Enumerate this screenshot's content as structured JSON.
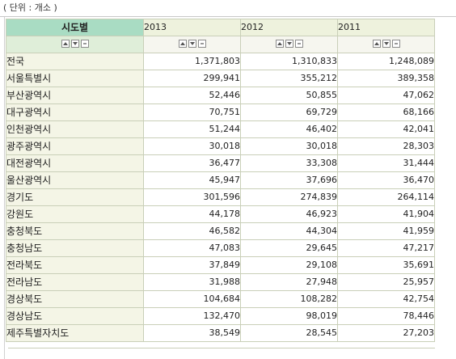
{
  "unit_label": "( 단위 : 개소 )",
  "table": {
    "region_header": "시도별",
    "years": [
      "2013",
      "2012",
      "2011"
    ],
    "rows": [
      {
        "region": "전국",
        "values": [
          "1,371,803",
          "1,310,833",
          "1,248,089"
        ]
      },
      {
        "region": "서울특별시",
        "values": [
          "299,941",
          "355,212",
          "389,358"
        ]
      },
      {
        "region": "부산광역시",
        "values": [
          "52,446",
          "50,855",
          "47,062"
        ]
      },
      {
        "region": "대구광역시",
        "values": [
          "70,751",
          "69,729",
          "68,166"
        ]
      },
      {
        "region": "인천광역시",
        "values": [
          "51,244",
          "46,402",
          "42,041"
        ]
      },
      {
        "region": "광주광역시",
        "values": [
          "30,018",
          "30,018",
          "28,303"
        ]
      },
      {
        "region": "대전광역시",
        "values": [
          "36,477",
          "33,308",
          "31,444"
        ]
      },
      {
        "region": "울산광역시",
        "values": [
          "45,947",
          "37,696",
          "36,470"
        ]
      },
      {
        "region": "경기도",
        "values": [
          "301,596",
          "274,839",
          "264,114"
        ]
      },
      {
        "region": "강원도",
        "values": [
          "44,178",
          "46,923",
          "41,904"
        ]
      },
      {
        "region": "충청북도",
        "values": [
          "46,582",
          "44,304",
          "41,959"
        ]
      },
      {
        "region": "충청남도",
        "values": [
          "47,083",
          "29,645",
          "47,217"
        ]
      },
      {
        "region": "전라북도",
        "values": [
          "37,849",
          "29,108",
          "35,691"
        ]
      },
      {
        "region": "전라남도",
        "values": [
          "31,988",
          "27,948",
          "25,957"
        ]
      },
      {
        "region": "경상북도",
        "values": [
          "104,684",
          "108,282",
          "42,754"
        ]
      },
      {
        "region": "경상남도",
        "values": [
          "132,470",
          "98,019",
          "78,446"
        ]
      },
      {
        "region": "제주특별자치도",
        "values": [
          "38,549",
          "28,545",
          "27,203"
        ]
      }
    ]
  },
  "controls": {
    "icons": [
      "sort-ascending-icon",
      "sort-descending-icon",
      "collapse-icon"
    ]
  },
  "colors": {
    "region_header_bg": "#a9dcc3",
    "year_header_bg": "#eef2dd",
    "name_cell_bg": "#f4f5e6",
    "border": "#c9cfb8"
  }
}
